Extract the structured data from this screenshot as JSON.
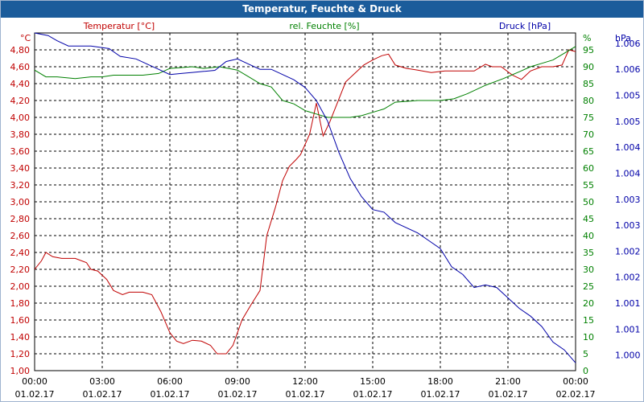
{
  "window": {
    "title": "Temperatur, Feuchte & Druck"
  },
  "colors": {
    "temperature": "#c00000",
    "humidity": "#008000",
    "pressure": "#0000a8",
    "grid": "#000000",
    "titlebar": "#1b5c9b"
  },
  "chart_data": {
    "type": "line",
    "title": "Temperatur, Feuchte & Druck",
    "axes": {
      "temperature": {
        "label": "Temperatur [°C]",
        "unit": "°C",
        "range": [
          1.0,
          4.8
        ],
        "ticks": [
          "1,00",
          "1,20",
          "1,40",
          "1,60",
          "1,80",
          "2,00",
          "2,20",
          "2,40",
          "2,60",
          "2,80",
          "3,00",
          "3,20",
          "3,40",
          "3,60",
          "3,80",
          "4,00",
          "4,20",
          "4,40",
          "4,60",
          "4,80"
        ]
      },
      "humidity": {
        "label": "rel. Feuchte [%]",
        "unit": "%",
        "range": [
          0,
          95
        ],
        "ticks": [
          "0",
          "5",
          "10",
          "15",
          "20",
          "25",
          "30",
          "35",
          "40",
          "45",
          "50",
          "55",
          "60",
          "65",
          "70",
          "75",
          "80",
          "85",
          "90",
          "95"
        ]
      },
      "pressure": {
        "label": "Druck [hPa]",
        "unit": "hPa",
        "range": [
          999.7,
          1006.2
        ],
        "ticks": [
          "1.000",
          "1.001",
          "1.001",
          "1.002",
          "1.002",
          "1.003",
          "1.003",
          "1.004",
          "1.004",
          "1.005",
          "1.005",
          "1.006",
          "1.006"
        ]
      }
    },
    "x": {
      "range_hours": [
        0,
        24
      ],
      "tick_times": [
        "00:00",
        "03:00",
        "06:00",
        "09:00",
        "12:00",
        "15:00",
        "18:00",
        "21:00",
        "00:00"
      ],
      "tick_dates": [
        "01.02.17",
        "01.02.17",
        "01.02.17",
        "01.02.17",
        "01.02.17",
        "01.02.17",
        "01.02.17",
        "01.02.17",
        "02.02.17"
      ]
    },
    "grid": true,
    "series": [
      {
        "name": "Temperatur [°C]",
        "axis": "temperature",
        "color": "#c00000",
        "points": [
          [
            0,
            2.2
          ],
          [
            0.3,
            2.3
          ],
          [
            0.5,
            2.4
          ],
          [
            0.8,
            2.35
          ],
          [
            1.2,
            2.33
          ],
          [
            1.8,
            2.33
          ],
          [
            2.3,
            2.28
          ],
          [
            2.5,
            2.2
          ],
          [
            2.8,
            2.18
          ],
          [
            3.2,
            2.08
          ],
          [
            3.5,
            1.95
          ],
          [
            3.9,
            1.9
          ],
          [
            4.2,
            1.93
          ],
          [
            4.8,
            1.93
          ],
          [
            5.2,
            1.9
          ],
          [
            5.6,
            1.7
          ],
          [
            6.0,
            1.45
          ],
          [
            6.3,
            1.35
          ],
          [
            6.6,
            1.32
          ],
          [
            7.0,
            1.36
          ],
          [
            7.4,
            1.35
          ],
          [
            7.8,
            1.3
          ],
          [
            8.1,
            1.2
          ],
          [
            8.5,
            1.2
          ],
          [
            8.8,
            1.3
          ],
          [
            9.2,
            1.6
          ],
          [
            9.6,
            1.78
          ],
          [
            10.0,
            1.95
          ],
          [
            10.3,
            2.6
          ],
          [
            10.7,
            2.95
          ],
          [
            11.0,
            3.25
          ],
          [
            11.3,
            3.42
          ],
          [
            11.6,
            3.5
          ],
          [
            11.8,
            3.56
          ],
          [
            12.2,
            3.8
          ],
          [
            12.5,
            4.17
          ],
          [
            12.8,
            3.78
          ],
          [
            13.1,
            3.95
          ],
          [
            13.4,
            4.15
          ],
          [
            13.8,
            4.42
          ],
          [
            14.2,
            4.52
          ],
          [
            14.6,
            4.62
          ],
          [
            15.0,
            4.68
          ],
          [
            15.4,
            4.73
          ],
          [
            15.7,
            4.75
          ],
          [
            16.0,
            4.62
          ],
          [
            16.5,
            4.58
          ],
          [
            17.0,
            4.56
          ],
          [
            17.6,
            4.53
          ],
          [
            18.2,
            4.55
          ],
          [
            18.8,
            4.55
          ],
          [
            19.5,
            4.55
          ],
          [
            20.0,
            4.63
          ],
          [
            20.3,
            4.6
          ],
          [
            20.7,
            4.6
          ],
          [
            21.2,
            4.5
          ],
          [
            21.6,
            4.45
          ],
          [
            22.0,
            4.55
          ],
          [
            22.5,
            4.6
          ],
          [
            23.0,
            4.6
          ],
          [
            23.4,
            4.62
          ],
          [
            23.7,
            4.8
          ],
          [
            24.0,
            4.78
          ]
        ]
      },
      {
        "name": "rel. Feuchte [%]",
        "axis": "humidity",
        "color": "#008000",
        "points": [
          [
            0,
            89
          ],
          [
            0.5,
            87
          ],
          [
            1.0,
            87
          ],
          [
            1.8,
            86.5
          ],
          [
            2.5,
            87
          ],
          [
            3.0,
            87
          ],
          [
            3.5,
            87.5
          ],
          [
            4.0,
            87.5
          ],
          [
            4.8,
            87.5
          ],
          [
            5.5,
            88
          ],
          [
            6.0,
            89.5
          ],
          [
            7.0,
            90
          ],
          [
            7.5,
            89.5
          ],
          [
            8.2,
            90
          ],
          [
            9.0,
            89
          ],
          [
            9.5,
            87
          ],
          [
            10.0,
            85
          ],
          [
            10.5,
            84
          ],
          [
            11.0,
            80
          ],
          [
            11.5,
            79
          ],
          [
            12.0,
            77
          ],
          [
            12.5,
            76
          ],
          [
            13.0,
            75
          ],
          [
            14.0,
            75
          ],
          [
            14.5,
            75.5
          ],
          [
            15.0,
            76.5
          ],
          [
            15.5,
            77.5
          ],
          [
            16.0,
            79.5
          ],
          [
            17.0,
            80
          ],
          [
            18.0,
            80
          ],
          [
            18.6,
            80.5
          ],
          [
            19.2,
            82
          ],
          [
            20.0,
            84.5
          ],
          [
            20.8,
            86.5
          ],
          [
            21.5,
            88.5
          ],
          [
            22.0,
            90
          ],
          [
            22.5,
            91
          ],
          [
            23.0,
            92
          ],
          [
            23.5,
            94
          ],
          [
            24.0,
            96
          ]
        ]
      },
      {
        "name": "Druck [hPa]",
        "axis": "pressure",
        "color": "#0000a8",
        "points": [
          [
            0,
            1006.2
          ],
          [
            0.6,
            1006.15
          ],
          [
            1.0,
            1006.05
          ],
          [
            1.5,
            1005.95
          ],
          [
            2.5,
            1005.95
          ],
          [
            3.3,
            1005.9
          ],
          [
            3.8,
            1005.75
          ],
          [
            4.5,
            1005.7
          ],
          [
            5.0,
            1005.6
          ],
          [
            5.5,
            1005.5
          ],
          [
            6.0,
            1005.4
          ],
          [
            6.5,
            1005.42
          ],
          [
            7.0,
            1005.44
          ],
          [
            7.5,
            1005.46
          ],
          [
            8.0,
            1005.48
          ],
          [
            8.5,
            1005.65
          ],
          [
            9.0,
            1005.7
          ],
          [
            9.5,
            1005.6
          ],
          [
            10.0,
            1005.5
          ],
          [
            10.5,
            1005.5
          ],
          [
            11.0,
            1005.4
          ],
          [
            11.5,
            1005.3
          ],
          [
            12.0,
            1005.15
          ],
          [
            12.5,
            1004.9
          ],
          [
            13.0,
            1004.5
          ],
          [
            13.5,
            1003.9
          ],
          [
            14.0,
            1003.4
          ],
          [
            14.5,
            1003.05
          ],
          [
            15.0,
            1002.8
          ],
          [
            15.5,
            1002.75
          ],
          [
            16.0,
            1002.55
          ],
          [
            16.5,
            1002.45
          ],
          [
            17.0,
            1002.35
          ],
          [
            17.5,
            1002.2
          ],
          [
            18.0,
            1002.05
          ],
          [
            18.5,
            1001.7
          ],
          [
            19.0,
            1001.55
          ],
          [
            19.5,
            1001.3
          ],
          [
            20.0,
            1001.35
          ],
          [
            20.5,
            1001.3
          ],
          [
            21.0,
            1001.1
          ],
          [
            21.5,
            1000.9
          ],
          [
            22.0,
            1000.75
          ],
          [
            22.5,
            1000.55
          ],
          [
            23.0,
            1000.25
          ],
          [
            23.5,
            1000.1
          ],
          [
            24.0,
            999.85
          ]
        ]
      }
    ]
  }
}
